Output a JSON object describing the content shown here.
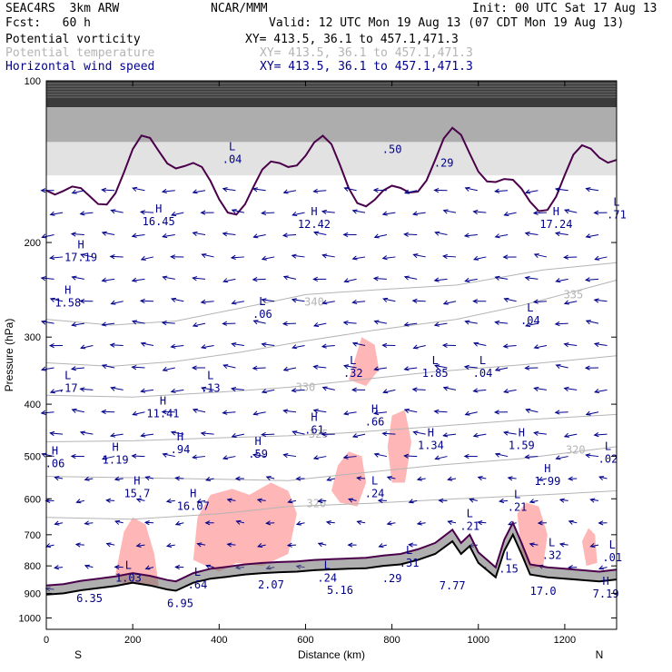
{
  "header": {
    "model": "SEAC4RS  3km ARW",
    "center": "NCAR/MMM",
    "init": "Init: 00 UTC Sat 17 Aug 13",
    "fcst": "Fcst:   60 h",
    "valid": "Valid: 12 UTC Mon 19 Aug 13 (07 CDT Mon 19 Aug 13)",
    "fields": [
      {
        "name": "Potential vorticity",
        "xy": "XY= 413.5, 36.1 to 457.1,471.3",
        "color": "#000000"
      },
      {
        "name": "Potential temperature",
        "xy": "XY= 413.5, 36.1 to 457.1,471.3",
        "color": "#b4b4b4"
      },
      {
        "name": "Horizontal wind speed",
        "xy": "XY= 413.5, 36.1 to 457.1,471.3",
        "color": "#00008b"
      }
    ]
  },
  "colors": {
    "pv_fill": "#ffb6b6",
    "theta_line": "#b4b4b4",
    "wind": "#00008b",
    "terrain": "#4a004a",
    "frame": "#000000"
  },
  "chart_data": {
    "type": "cross-section",
    "xlabel": "Distance (km)",
    "ylabel": "Pressure (hPa)",
    "xlim": [
      0,
      1320
    ],
    "ylim": [
      100,
      1050
    ],
    "y_scale": "log",
    "x_ticks": [
      0,
      200,
      400,
      600,
      800,
      1000,
      1200
    ],
    "y_ticks": [
      100,
      200,
      300,
      400,
      500,
      600,
      700,
      800,
      900,
      1000
    ],
    "x_ends": {
      "left": "S",
      "right": "N"
    },
    "theta_contours": [
      {
        "label": "340",
        "points": [
          [
            0,
            278
          ],
          [
            150,
            285
          ],
          [
            300,
            280
          ],
          [
            480,
            262
          ],
          [
            600,
            250
          ],
          [
            760,
            245
          ],
          [
            950,
            240
          ],
          [
            1150,
            225
          ],
          [
            1320,
            218
          ]
        ],
        "label_at": [
          620,
          258
        ]
      },
      {
        "label": "335",
        "points": [
          [
            0,
            335
          ],
          [
            150,
            340
          ],
          [
            300,
            333
          ],
          [
            450,
            320
          ],
          [
            600,
            305
          ],
          [
            750,
            292
          ],
          [
            950,
            278
          ],
          [
            1100,
            262
          ],
          [
            1320,
            235
          ]
        ],
        "label_at": [
          1220,
          250
        ]
      },
      {
        "label": "330",
        "points": [
          [
            0,
            385
          ],
          [
            200,
            388
          ],
          [
            400,
            380
          ],
          [
            560,
            372
          ],
          [
            700,
            362
          ],
          [
            900,
            348
          ],
          [
            1100,
            338
          ],
          [
            1320,
            325
          ]
        ],
        "label_at": [
          600,
          372
        ]
      },
      {
        "label": "325",
        "points": [
          [
            0,
            470
          ],
          [
            200,
            468
          ],
          [
            400,
            462
          ],
          [
            560,
            458
          ],
          [
            700,
            452
          ],
          [
            900,
            440
          ],
          [
            1100,
            428
          ],
          [
            1320,
            418
          ]
        ],
        "label_at": [
          630,
          455
        ]
      },
      {
        "label": "320",
        "points": [
          [
            0,
            545
          ],
          [
            200,
            548
          ],
          [
            400,
            552
          ],
          [
            560,
            555
          ],
          [
            700,
            540
          ],
          [
            900,
            520
          ],
          [
            1100,
            505
          ],
          [
            1320,
            480
          ]
        ],
        "label_at": [
          1225,
          487
        ]
      },
      {
        "label": "320",
        "points": [
          [
            0,
            650
          ],
          [
            200,
            655
          ],
          [
            400,
            640
          ],
          [
            560,
            620
          ],
          [
            750,
            612
          ],
          [
            950,
            600
          ],
          [
            1150,
            590
          ],
          [
            1320,
            580
          ]
        ],
        "label_at": [
          625,
          612
        ]
      }
    ],
    "pv_regions": [
      {
        "points": [
          [
            160,
            830
          ],
          [
            180,
            690
          ],
          [
            200,
            650
          ],
          [
            230,
            670
          ],
          [
            250,
            760
          ],
          [
            260,
            870
          ],
          [
            215,
            880
          ],
          [
            180,
            870
          ]
        ]
      },
      {
        "points": [
          [
            340,
            780
          ],
          [
            350,
            650
          ],
          [
            380,
            590
          ],
          [
            430,
            575
          ],
          [
            470,
            590
          ],
          [
            520,
            560
          ],
          [
            560,
            580
          ],
          [
            580,
            640
          ],
          [
            560,
            760
          ],
          [
            500,
            800
          ],
          [
            440,
            790
          ],
          [
            400,
            820
          ]
        ]
      },
      {
        "points": [
          [
            660,
            580
          ],
          [
            675,
            520
          ],
          [
            700,
            490
          ],
          [
            730,
            500
          ],
          [
            740,
            560
          ],
          [
            720,
            620
          ],
          [
            680,
            610
          ]
        ]
      },
      {
        "points": [
          [
            700,
            360
          ],
          [
            730,
            300
          ],
          [
            760,
            310
          ],
          [
            770,
            345
          ],
          [
            740,
            370
          ]
        ]
      },
      {
        "points": [
          [
            790,
            480
          ],
          [
            800,
            420
          ],
          [
            830,
            410
          ],
          [
            845,
            470
          ],
          [
            830,
            560
          ],
          [
            800,
            560
          ]
        ]
      },
      {
        "points": [
          [
            1090,
            640
          ],
          [
            1110,
            610
          ],
          [
            1140,
            620
          ],
          [
            1160,
            700
          ],
          [
            1150,
            800
          ],
          [
            1120,
            810
          ],
          [
            1100,
            760
          ]
        ]
      },
      {
        "points": [
          [
            1240,
            720
          ],
          [
            1255,
            680
          ],
          [
            1270,
            700
          ],
          [
            1275,
            790
          ],
          [
            1250,
            800
          ]
        ]
      }
    ],
    "terrain_surface": [
      [
        0,
        905
      ],
      [
        40,
        900
      ],
      [
        80,
        888
      ],
      [
        120,
        880
      ],
      [
        160,
        872
      ],
      [
        200,
        860
      ],
      [
        240,
        870
      ],
      [
        280,
        885
      ],
      [
        300,
        890
      ],
      [
        340,
        860
      ],
      [
        380,
        845
      ],
      [
        420,
        838
      ],
      [
        460,
        830
      ],
      [
        500,
        825
      ],
      [
        540,
        822
      ],
      [
        580,
        820
      ],
      [
        620,
        815
      ],
      [
        660,
        812
      ],
      [
        700,
        810
      ],
      [
        740,
        808
      ],
      [
        780,
        800
      ],
      [
        820,
        795
      ],
      [
        860,
        780
      ],
      [
        900,
        760
      ],
      [
        940,
        720
      ],
      [
        960,
        760
      ],
      [
        980,
        735
      ],
      [
        1000,
        790
      ],
      [
        1040,
        840
      ],
      [
        1060,
        750
      ],
      [
        1080,
        700
      ],
      [
        1100,
        760
      ],
      [
        1120,
        830
      ],
      [
        1160,
        840
      ],
      [
        1200,
        845
      ],
      [
        1240,
        850
      ],
      [
        1280,
        855
      ],
      [
        1320,
        848
      ]
    ],
    "extrema_labels": [
      {
        "letter": "L",
        "value": ".04",
        "x": 430,
        "p": 138
      },
      {
        "letter": "",
        "value": ".50",
        "x": 800,
        "p": 132
      },
      {
        "letter": "",
        "value": ".29",
        "x": 920,
        "p": 140
      },
      {
        "letter": "H",
        "value": "16.45",
        "x": 260,
        "p": 180
      },
      {
        "letter": "H",
        "value": "12.42",
        "x": 620,
        "p": 182
      },
      {
        "letter": "H",
        "value": "17.24",
        "x": 1180,
        "p": 182
      },
      {
        "letter": "L",
        "value": ".71",
        "x": 1320,
        "p": 175
      },
      {
        "letter": "H",
        "value": "17.19",
        "x": 80,
        "p": 210
      },
      {
        "letter": "H",
        "value": "1.58",
        "x": 50,
        "p": 255
      },
      {
        "letter": "L",
        "value": ".06",
        "x": 500,
        "p": 268
      },
      {
        "letter": "L",
        "value": ".04",
        "x": 1120,
        "p": 275
      },
      {
        "letter": "L",
        "value": ".32",
        "x": 710,
        "p": 345
      },
      {
        "letter": "L",
        "value": "1.85",
        "x": 900,
        "p": 345
      },
      {
        "letter": "L",
        "value": ".04",
        "x": 1010,
        "p": 345
      },
      {
        "letter": "L",
        "value": ".17",
        "x": 50,
        "p": 368
      },
      {
        "letter": "L",
        "value": ".13",
        "x": 380,
        "p": 368
      },
      {
        "letter": "H",
        "value": "11.41",
        "x": 270,
        "p": 410
      },
      {
        "letter": "H",
        "value": ".66",
        "x": 760,
        "p": 425
      },
      {
        "letter": "H",
        "value": ".61",
        "x": 620,
        "p": 440
      },
      {
        "letter": "H",
        "value": "1.34",
        "x": 890,
        "p": 470
      },
      {
        "letter": "H",
        "value": "1.59",
        "x": 1100,
        "p": 470
      },
      {
        "letter": "H",
        "value": ".94",
        "x": 310,
        "p": 478
      },
      {
        "letter": "H",
        "value": ".59",
        "x": 490,
        "p": 488
      },
      {
        "letter": "H",
        "value": "1.19",
        "x": 160,
        "p": 500
      },
      {
        "letter": "L",
        "value": ".02",
        "x": 1300,
        "p": 498
      },
      {
        "letter": "H",
        "value": ".06",
        "x": 20,
        "p": 508
      },
      {
        "letter": "H",
        "value": "1.99",
        "x": 1160,
        "p": 548
      },
      {
        "letter": "L",
        "value": ".24",
        "x": 760,
        "p": 578
      },
      {
        "letter": "H",
        "value": "15.7",
        "x": 210,
        "p": 578
      },
      {
        "letter": "H",
        "value": "16.07",
        "x": 340,
        "p": 610
      },
      {
        "letter": "L",
        "value": ".21",
        "x": 1090,
        "p": 612
      },
      {
        "letter": "L",
        "value": ".21",
        "x": 980,
        "p": 665
      },
      {
        "letter": "L",
        "value": ".32",
        "x": 1170,
        "p": 752
      },
      {
        "letter": "L",
        "value": ".01",
        "x": 1310,
        "p": 760
      },
      {
        "letter": "L",
        "value": ".31",
        "x": 840,
        "p": 778
      },
      {
        "letter": "L",
        "value": ".15",
        "x": 1070,
        "p": 798
      },
      {
        "letter": "L",
        "value": "1.03",
        "x": 190,
        "p": 830
      },
      {
        "letter": "L",
        "value": ".64",
        "x": 350,
        "p": 855
      },
      {
        "letter": "L",
        "value": ".24",
        "x": 650,
        "p": 830
      },
      {
        "letter": "",
        "value": ".29",
        "x": 800,
        "p": 832
      },
      {
        "letter": "",
        "value": "2.07",
        "x": 520,
        "p": 855
      },
      {
        "letter": "",
        "value": "7.77",
        "x": 940,
        "p": 858
      },
      {
        "letter": "",
        "value": "5.16",
        "x": 680,
        "p": 875
      },
      {
        "letter": "",
        "value": "17.0",
        "x": 1150,
        "p": 878
      },
      {
        "letter": "H",
        "value": "7.19",
        "x": 1295,
        "p": 888
      },
      {
        "letter": "",
        "value": "6.95",
        "x": 310,
        "p": 925
      },
      {
        "letter": "",
        "value": "6.35",
        "x": 100,
        "p": 905
      }
    ]
  }
}
